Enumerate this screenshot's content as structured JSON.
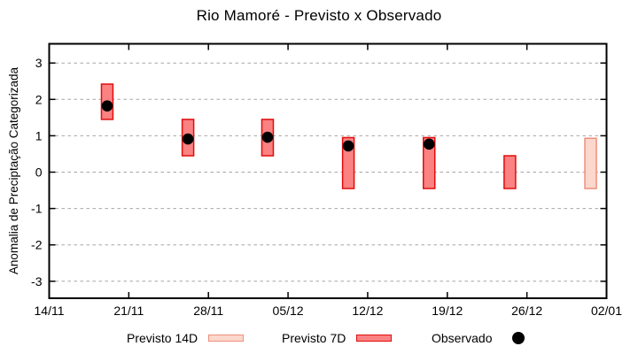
{
  "title": "Rio Mamoré - Previsto x Observado",
  "ylabel": "Anomalia de Preciptação Categorizada",
  "legend": {
    "previsto_14d": "Previsto 14D",
    "previsto_7d": "Previsto 7D",
    "observado": "Observado"
  },
  "colors": {
    "bar_7d_fill": "#fa8282",
    "bar_7d_border": "#e20c0c",
    "bar_14d_fill": "#fbd7cc",
    "bar_14d_border": "#ee8e7b",
    "dot": "#000000",
    "grid": "#a6a6a6",
    "axis": "#000000"
  },
  "chart_data": {
    "type": "bar",
    "subtype": "range-bars with scatter overlay",
    "title": "Rio Mamoré - Previsto x Observado",
    "xlabel": "",
    "ylabel": "Anomalia de Preciptação Categorizada",
    "x_axis": {
      "tick_labels": [
        "14/11",
        "21/11",
        "28/11",
        "05/12",
        "12/12",
        "19/12",
        "26/12",
        "02/01"
      ],
      "tick_days": [
        0,
        7,
        14,
        21,
        28,
        35,
        42,
        49
      ],
      "range_days": [
        0,
        49
      ]
    },
    "y_axis": {
      "tick_labels": [
        "-3",
        "-2",
        "-1",
        "0",
        "1",
        "2",
        "3"
      ],
      "ticks": [
        -3,
        -2,
        -1,
        0,
        1,
        2,
        3
      ],
      "ylim": [
        -3.5,
        3.5
      ],
      "grid": "horizontal dashed"
    },
    "legend_position": "bottom",
    "series": [
      {
        "name": "Previsto 7D",
        "type": "range-bar",
        "points": [
          {
            "date": "19/11",
            "day": 5.1,
            "low": 1.45,
            "high": 2.42
          },
          {
            "date": "26/11",
            "day": 12.2,
            "low": 0.45,
            "high": 1.45
          },
          {
            "date": "03/12",
            "day": 19.2,
            "low": 0.45,
            "high": 1.45
          },
          {
            "date": "10/12",
            "day": 26.3,
            "low": -0.45,
            "high": 0.95
          },
          {
            "date": "17/12",
            "day": 33.4,
            "low": -0.45,
            "high": 0.95
          },
          {
            "date": "24/12",
            "day": 40.5,
            "low": -0.45,
            "high": 0.45
          }
        ]
      },
      {
        "name": "Previsto 14D",
        "type": "range-bar",
        "points": [
          {
            "date": "31/12",
            "day": 47.6,
            "low": -0.45,
            "high": 0.93
          }
        ]
      },
      {
        "name": "Observado",
        "type": "scatter",
        "points": [
          {
            "date": "19/11",
            "day": 5.1,
            "value": 1.82
          },
          {
            "date": "26/11",
            "day": 12.2,
            "value": 0.91
          },
          {
            "date": "03/12",
            "day": 19.2,
            "value": 0.96
          },
          {
            "date": "10/12",
            "day": 26.3,
            "value": 0.72
          },
          {
            "date": "17/12",
            "day": 33.4,
            "value": 0.77
          }
        ]
      }
    ]
  }
}
